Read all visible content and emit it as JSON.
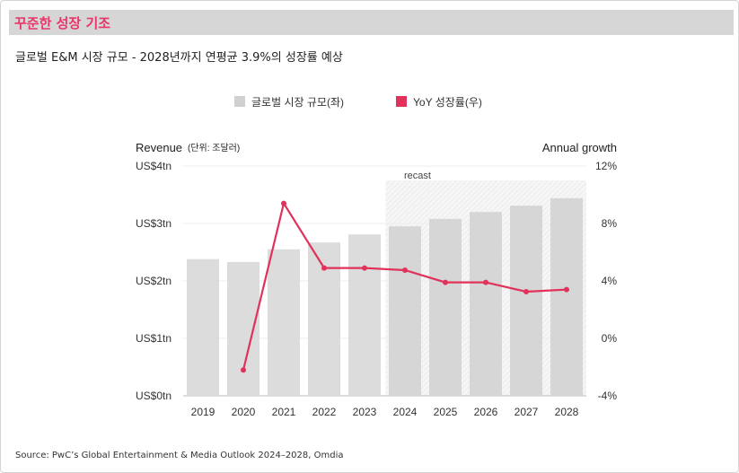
{
  "header": {
    "title": "꾸준한 성장 기조",
    "subtitle": "글로벌 E&M 시장 규모 - 2028년까지 연평균 3.9%의 성장률 예상"
  },
  "source": "Source: PwC’s Global Entertainment & Media Outlook 2024–2028, Omdia",
  "colors": {
    "bar": "#dcdcdc",
    "line": "#e0325a",
    "title": "#e8356a"
  },
  "chart_data": {
    "type": "bar+line",
    "categories": [
      "2019",
      "2020",
      "2021",
      "2022",
      "2023",
      "2024",
      "2025",
      "2026",
      "2027",
      "2028"
    ],
    "series": [
      {
        "name": "글로벌 시장 규모(좌)",
        "type": "bar",
        "axis": "left",
        "values": [
          2.38,
          2.33,
          2.55,
          2.67,
          2.81,
          2.95,
          3.08,
          3.2,
          3.31,
          3.44
        ]
      },
      {
        "name": "YoY 성장률(우)",
        "type": "line",
        "axis": "right",
        "values": [
          null,
          -2.2,
          9.4,
          4.9,
          4.9,
          4.75,
          3.9,
          3.9,
          3.25,
          3.4
        ]
      }
    ],
    "ylabel_left": "Revenue",
    "ylabel_left_unit": "(단위: 조달러)",
    "ylabel_right": "Annual growth",
    "ylim_left": [
      0,
      4
    ],
    "ylim_right": [
      -4,
      12
    ],
    "yticks_left": [
      "US$0tn",
      "US$1tn",
      "US$2tn",
      "US$3tn",
      "US$4tn"
    ],
    "yticks_right": [
      "-4%",
      "0%",
      "4%",
      "8%",
      "12%"
    ],
    "annotation": "recast",
    "recast_from": "2024",
    "legend_position": "top-center",
    "grid": true
  }
}
